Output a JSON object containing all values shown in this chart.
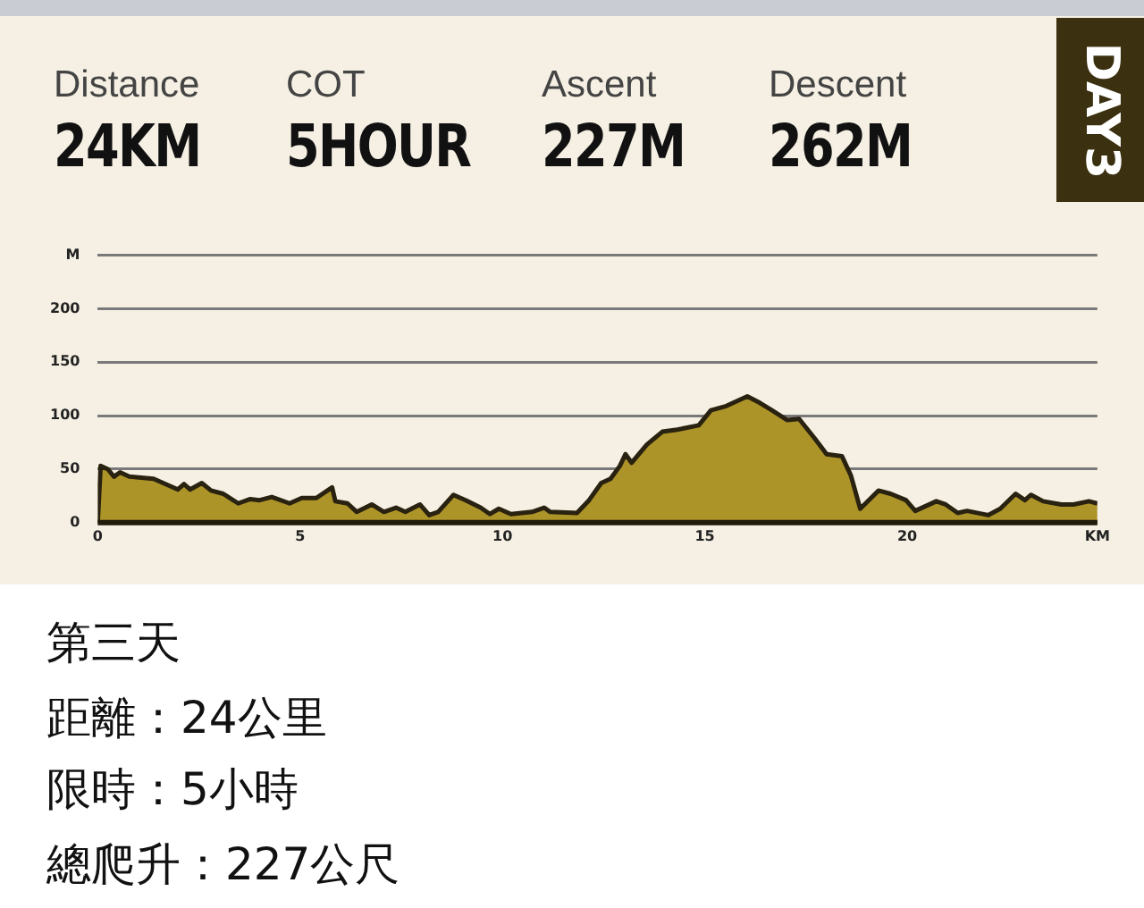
{
  "chart_data": {
    "type": "area",
    "annotations": [
      "Distance",
      "24KM",
      "COT",
      "5HOUR",
      "Ascent",
      "227M",
      "Descent",
      "262M",
      "DAY3",
      "第三天",
      "距離：24公里",
      "限時：5小時",
      "總爬升：227公尺"
    ],
    "x": [
      0,
      0.07,
      0.25,
      0.4,
      0.55,
      0.78,
      1.38,
      1.68,
      1.98,
      2.13,
      2.28,
      2.57,
      2.8,
      3.1,
      3.47,
      3.77,
      4.0,
      4.3,
      4.74,
      5.04,
      5.4,
      5.79,
      5.87,
      6.17,
      6.4,
      6.77,
      7.07,
      7.37,
      7.6,
      7.96,
      8.19,
      8.41,
      8.79,
      9.09,
      9.46,
      9.69,
      9.91,
      10.21,
      10.73,
      11.03,
      11.18,
      11.84,
      12.14,
      12.44,
      12.67,
      12.9,
      13.04,
      13.19,
      13.57,
      13.95,
      14.32,
      14.85,
      15.15,
      15.53,
      16.05,
      16.36,
      16.66,
      17.03,
      17.33,
      17.71,
      18.01,
      18.39,
      18.61,
      18.84,
      19.29,
      19.59,
      19.97,
      20.2,
      20.72,
      20.95,
      21.25,
      21.48,
      22.0,
      22.3,
      22.68,
      22.91,
      23.06,
      23.36,
      23.81,
      24.11,
      24.49,
      24.7
    ],
    "series": [
      {
        "color": "#ad9428",
        "values": [
          1,
          53,
          50,
          43,
          47,
          43,
          41,
          36,
          31,
          36,
          31,
          37,
          30,
          27,
          18,
          22,
          21,
          24,
          18,
          23,
          23,
          33,
          20,
          18,
          10,
          17,
          10,
          14,
          10,
          17,
          7,
          10,
          26,
          21,
          14,
          8,
          13,
          8,
          10,
          14,
          10,
          9,
          21,
          37,
          41,
          53,
          64,
          56,
          73,
          85,
          87,
          91,
          105,
          109,
          118,
          112,
          105,
          96,
          97,
          79,
          64,
          62,
          44,
          13,
          30,
          27,
          21,
          11,
          20,
          17,
          9,
          11,
          7,
          13,
          27,
          21,
          26,
          20,
          17,
          17,
          20,
          18
        ]
      }
    ],
    "xlim": [
      0,
      24.7
    ],
    "xticks": [
      0,
      5,
      10,
      15,
      20,
      {
        "value": 24.7,
        "label": "KM"
      }
    ],
    "ylim": [
      0,
      250
    ],
    "yticks": [
      0,
      50,
      100,
      150,
      {
        "value": 200,
        "label": "200"
      },
      {
        "value": 250,
        "label": "M"
      }
    ],
    "grid": "y"
  }
}
